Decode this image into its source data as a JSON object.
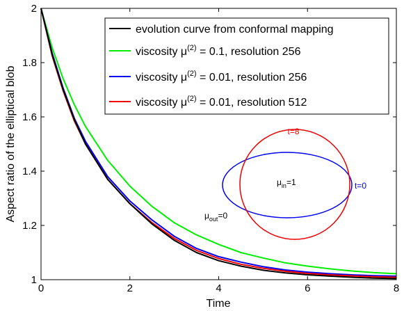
{
  "chart_data": {
    "type": "line",
    "xlabel": "Time",
    "ylabel": "Aspect ratio of the elliptical blob",
    "xlim": [
      0,
      8
    ],
    "ylim": [
      1,
      2
    ],
    "xticks": [
      "0",
      "2",
      "4",
      "6",
      "8"
    ],
    "yticks": [
      "1",
      "1.2",
      "1.4",
      "1.6",
      "1.8",
      "2"
    ],
    "legend_position": "top-right",
    "series": [
      {
        "key": "conformal",
        "name": "evolution curve from conformal mapping",
        "color": "#000000",
        "x": [
          0,
          0.25,
          0.5,
          0.75,
          1,
          1.5,
          2,
          2.5,
          3,
          3.5,
          4,
          4.5,
          5,
          5.5,
          6,
          6.5,
          7,
          7.5,
          8
        ],
        "y": [
          2.0,
          1.83,
          1.7,
          1.59,
          1.5,
          1.37,
          1.28,
          1.205,
          1.145,
          1.1,
          1.07,
          1.05,
          1.035,
          1.025,
          1.018,
          1.013,
          1.009,
          1.006,
          1.004
        ]
      },
      {
        "key": "visc01_256",
        "name_parts": [
          "viscosity μ",
          "(2)",
          " = 0.1, resolution 256"
        ],
        "color": "#00ee00",
        "x": [
          0,
          0.25,
          0.5,
          0.75,
          1,
          1.5,
          2,
          2.5,
          3,
          3.5,
          4,
          4.5,
          5,
          5.5,
          6,
          6.5,
          7,
          7.5,
          8
        ],
        "y": [
          2.0,
          1.855,
          1.74,
          1.645,
          1.565,
          1.44,
          1.345,
          1.27,
          1.21,
          1.165,
          1.13,
          1.1,
          1.08,
          1.062,
          1.05,
          1.04,
          1.032,
          1.026,
          1.022
        ]
      },
      {
        "key": "visc001_256",
        "name_parts": [
          "viscosity μ",
          "(2)",
          " = 0.01, resolution 256"
        ],
        "color": "#0000ee",
        "x": [
          0,
          0.25,
          0.5,
          0.75,
          1,
          1.5,
          2,
          2.5,
          3,
          3.5,
          4,
          4.5,
          5,
          5.5,
          6,
          6.5,
          7,
          7.5,
          8
        ],
        "y": [
          2.0,
          1.835,
          1.705,
          1.595,
          1.51,
          1.38,
          1.29,
          1.22,
          1.16,
          1.115,
          1.085,
          1.065,
          1.048,
          1.036,
          1.028,
          1.022,
          1.018,
          1.015,
          1.013
        ]
      },
      {
        "key": "visc001_512",
        "name_parts": [
          "viscosity μ",
          "(2)",
          " = 0.01, resolution 512"
        ],
        "color": "#ee0000",
        "x": [
          0,
          0.25,
          0.5,
          0.75,
          1,
          1.5,
          2,
          2.5,
          3,
          3.5,
          4,
          4.5,
          5,
          5.5,
          6,
          6.5,
          7,
          7.5,
          8
        ],
        "y": [
          2.0,
          1.825,
          1.695,
          1.585,
          1.5,
          1.37,
          1.28,
          1.21,
          1.152,
          1.108,
          1.078,
          1.057,
          1.042,
          1.031,
          1.023,
          1.018,
          1.014,
          1.011,
          1.009
        ]
      }
    ],
    "inset": {
      "label_t8": "t=8",
      "label_t0": "t=0",
      "mu_in_base": "μ",
      "mu_in_sub": "in",
      "mu_in_val": "=1",
      "mu_out_base": "μ",
      "mu_out_sub": "out",
      "mu_out_val": "=0",
      "circle_color": "#ee0000",
      "ellipse_color": "#0000ee"
    }
  }
}
